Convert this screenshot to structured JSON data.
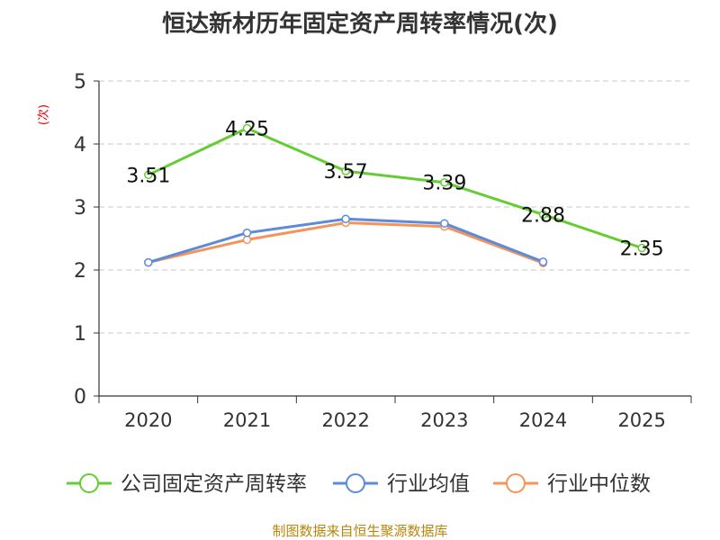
{
  "title": "恒达新材历年固定资产周转率情况(次)",
  "unit_label": "(次)",
  "source": "制图数据来自恒生聚源数据库",
  "chart_data": {
    "type": "line",
    "title": "恒达新材历年固定资产周转率情况(次)",
    "ylabel": "(次)",
    "xlabel": "",
    "ylim": [
      0,
      5
    ],
    "yticks": [
      0,
      1,
      2,
      3,
      4,
      5
    ],
    "grid": true,
    "legend_position": "bottom",
    "categories": [
      "2020",
      "2021",
      "2022",
      "2023",
      "2024",
      "2025"
    ],
    "series": [
      {
        "name": "公司固定资产周转率",
        "color": "#66cc33",
        "values": [
          3.51,
          4.25,
          3.57,
          3.39,
          2.88,
          2.35
        ],
        "show_labels": true
      },
      {
        "name": "行业均值",
        "color": "#5b8bd9",
        "values": [
          2.12,
          2.59,
          2.81,
          2.74,
          2.13,
          null
        ],
        "show_labels": false
      },
      {
        "name": "行业中位数",
        "color": "#f4935a",
        "values": [
          2.12,
          2.48,
          2.75,
          2.69,
          2.11,
          null
        ],
        "show_labels": false
      }
    ]
  }
}
